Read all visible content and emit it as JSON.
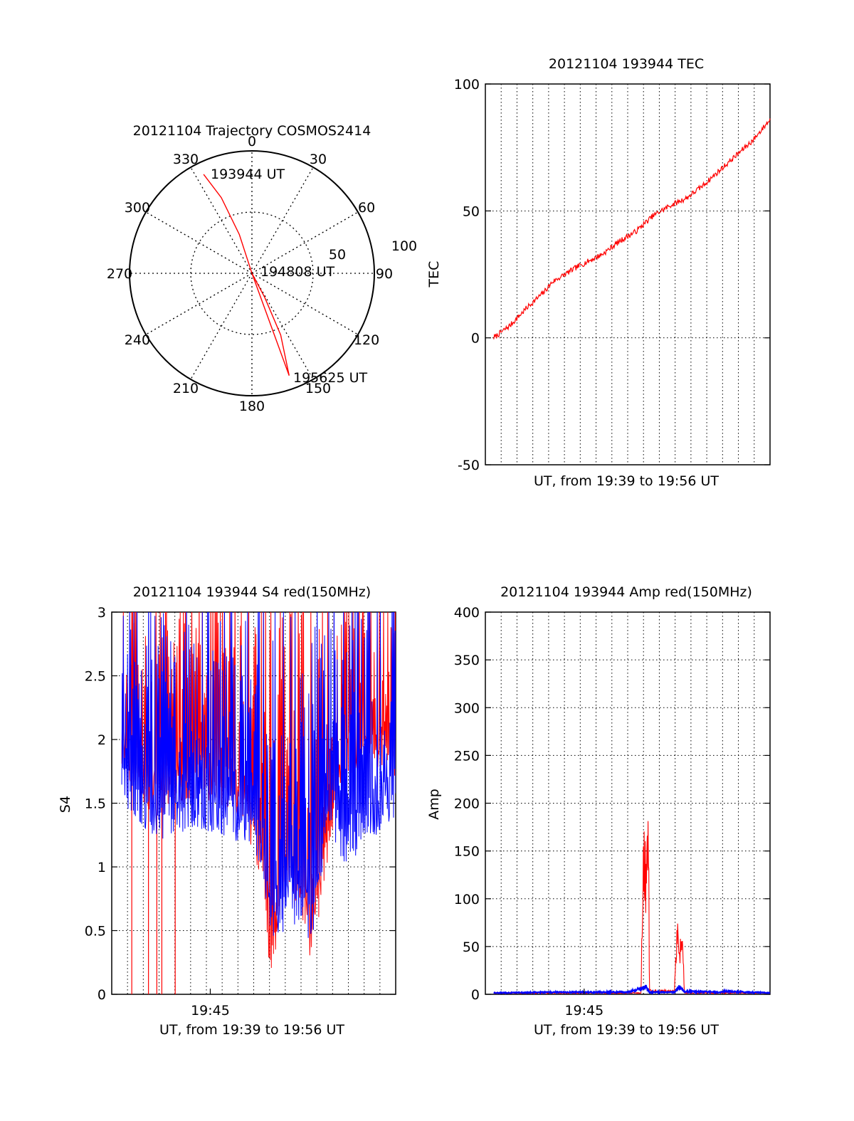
{
  "colors": {
    "red": "#ff0000",
    "blue": "#0000ff",
    "axis": "#000000",
    "grid": "#000000"
  },
  "chart_data": [
    {
      "type": "polar",
      "title": "20121104 Trajectory COSMOS2414",
      "azimuth_labels": [
        "0",
        "30",
        "60",
        "90",
        "120",
        "150",
        "180",
        "210",
        "240",
        "270",
        "300",
        "330"
      ],
      "radial_labels": [
        "50",
        "100"
      ],
      "grid": true,
      "series": [
        {
          "color": "#ff0000",
          "points": [
            [
              334,
              9
            ],
            [
              338,
              30
            ],
            [
              342,
              60
            ],
            [
              345,
              90
            ],
            [
              343,
              90
            ],
            [
              160,
              10
            ],
            [
              155,
              40
            ],
            [
              152,
              70
            ],
            [
              151,
              90
            ]
          ]
        }
      ],
      "annotations": [
        "193944 UT",
        "194808 UT",
        "195625 UT"
      ]
    },
    {
      "type": "line",
      "title": "20121104 193944 TEC",
      "xlabel": "UT, from 19:39 to 19:56 UT",
      "ylabel": "TEC",
      "ylim": [
        -50,
        100
      ],
      "yticks": [
        "100",
        "50",
        "0",
        "-50"
      ],
      "xlim": [
        0,
        17
      ],
      "grid": true,
      "series": [
        {
          "color": "#ff0000",
          "x": [
            0.5,
            1.5,
            2.5,
            3.5,
            4.0,
            5.5,
            7.0,
            8.0,
            9.0,
            10.0,
            11.0,
            12.0,
            13.0,
            14.0,
            15.0,
            16.0,
            17.0
          ],
          "y": [
            0,
            5,
            12,
            18,
            22,
            28,
            33,
            38,
            42,
            48,
            52,
            55,
            60,
            66,
            72,
            78,
            86
          ]
        }
      ]
    },
    {
      "type": "line",
      "title": "20121104 193944 S4 red(150MHz)",
      "xlabel": "UT, from 19:39 to 19:56 UT",
      "ylabel": "S4",
      "ylim": [
        0,
        3
      ],
      "yticks": [
        "3",
        "2.5",
        "2",
        "1.5",
        "1",
        "0.5",
        "0"
      ],
      "xticks": [
        "19:45"
      ],
      "grid": true,
      "series": [
        {
          "color": "#ff0000",
          "envelope": [
            [
              0.6,
              1.7
            ],
            [
              2.5,
              1.4
            ],
            [
              5.0,
              1.5
            ],
            [
              7.5,
              1.4
            ],
            [
              9.0,
              0.9
            ],
            [
              9.5,
              0.1
            ],
            [
              10.5,
              0.8
            ],
            [
              11.5,
              0.5
            ],
            [
              12.0,
              0.15
            ],
            [
              13.0,
              1.0
            ],
            [
              14.0,
              1.7
            ],
            [
              17.0,
              1.7
            ]
          ],
          "spikes_to_zero": [
            1.2,
            2.2,
            2.7,
            3.0,
            3.8
          ]
        },
        {
          "color": "#0000ff",
          "envelope": [
            [
              0.6,
              1.5
            ],
            [
              2.5,
              1.2
            ],
            [
              5.0,
              1.3
            ],
            [
              7.5,
              1.2
            ],
            [
              9.0,
              1.0
            ],
            [
              9.5,
              0.4
            ],
            [
              10.5,
              0.5
            ],
            [
              11.5,
              0.6
            ],
            [
              12.0,
              0.3
            ],
            [
              13.0,
              1.3
            ],
            [
              14.0,
              1.0
            ],
            [
              17.0,
              1.4
            ]
          ]
        }
      ]
    },
    {
      "type": "line",
      "title": "20121104 193944 Amp red(150MHz)",
      "xlabel": "UT, from 19:39 to 19:56 UT",
      "ylabel": "Amp",
      "ylim": [
        0,
        400
      ],
      "yticks": [
        "400",
        "350",
        "300",
        "250",
        "200",
        "150",
        "100",
        "50",
        "0"
      ],
      "xticks": [
        "19:45"
      ],
      "grid": true,
      "series": [
        {
          "color": "#ff0000",
          "points": [
            [
              0.5,
              2
            ],
            [
              9.3,
              2
            ],
            [
              9.4,
              200
            ],
            [
              9.6,
              190
            ],
            [
              9.75,
              190
            ],
            [
              9.8,
              5
            ],
            [
              11.3,
              5
            ],
            [
              11.4,
              78
            ],
            [
              11.6,
              70
            ],
            [
              11.8,
              55
            ],
            [
              11.9,
              2
            ],
            [
              17.0,
              2
            ]
          ]
        },
        {
          "color": "#0000ff",
          "points": [
            [
              0.5,
              2
            ],
            [
              4.5,
              3
            ],
            [
              8.5,
              3
            ],
            [
              9.3,
              8
            ],
            [
              9.6,
              10
            ],
            [
              9.8,
              3
            ],
            [
              11.3,
              3
            ],
            [
              11.6,
              10
            ],
            [
              11.9,
              4
            ],
            [
              14.0,
              3
            ],
            [
              14.3,
              4
            ],
            [
              17.0,
              2
            ]
          ]
        }
      ]
    }
  ]
}
